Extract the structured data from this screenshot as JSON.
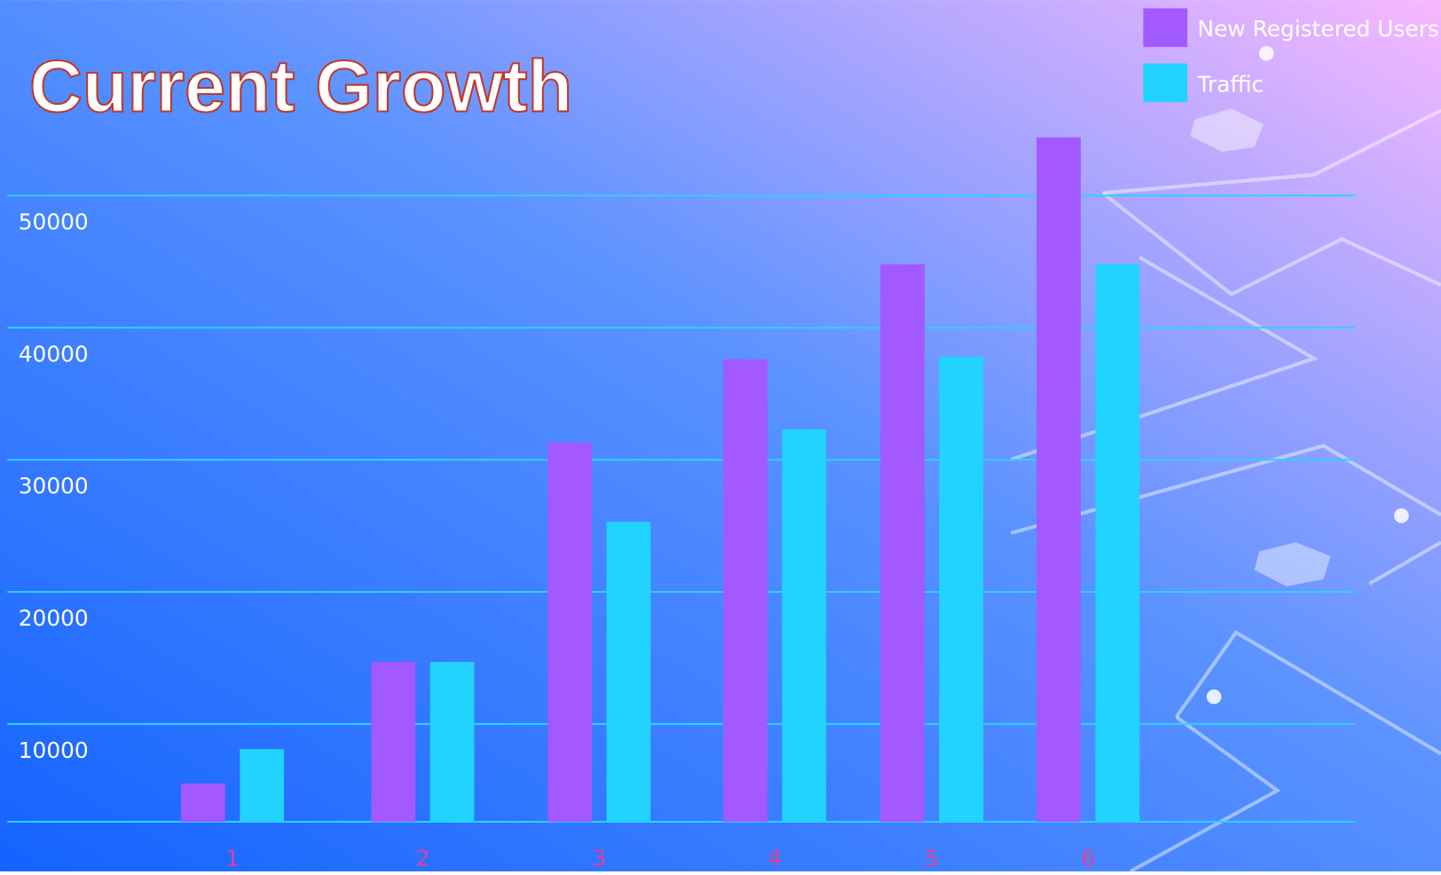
{
  "chart_data": {
    "type": "bar",
    "title": "Current Growth",
    "categories": [
      "1",
      "2",
      "3",
      "4",
      "5",
      "6"
    ],
    "series": [
      {
        "name": "New Registered Users",
        "color": "#a259ff",
        "values": [
          5500,
          14700,
          31300,
          37600,
          44800,
          54400
        ]
      },
      {
        "name": "Traffic",
        "color": "#22d3ff",
        "values": [
          8100,
          14700,
          25300,
          32300,
          37800,
          44800
        ]
      }
    ],
    "ylim": [
      2600,
      60000
    ],
    "yticks": [
      10000,
      20000,
      30000,
      40000,
      50000
    ],
    "grid": true,
    "legend": "top-right"
  }
}
